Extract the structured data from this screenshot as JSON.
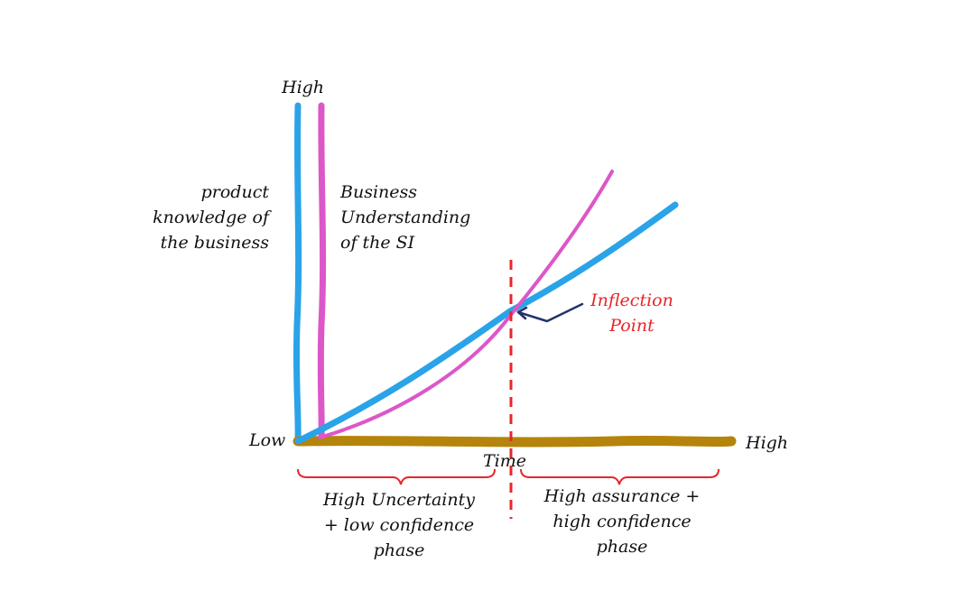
{
  "axis": {
    "y_top_label": "High",
    "origin_label": "Low",
    "x_end_label": "High",
    "x_label": "Time"
  },
  "series": {
    "product_knowledge_label": "product\nknowledge of\nthe business",
    "business_understanding_label": "Business\nUnderstanding\nof the SI"
  },
  "annotation": {
    "inflection_label": "Inflection\nPoint"
  },
  "phases": {
    "left_label": "High Uncertainty\n+ low confidence\nphase",
    "right_label": "High assurance +\nhigh confidence\nphase"
  },
  "colors": {
    "product_knowledge": "#2aa3e8",
    "business_understanding": "#dc57c8",
    "x_axis": "#b5840a",
    "divider": "#e8262b",
    "brace": "#e8262b",
    "arrow": "#23336b"
  }
}
